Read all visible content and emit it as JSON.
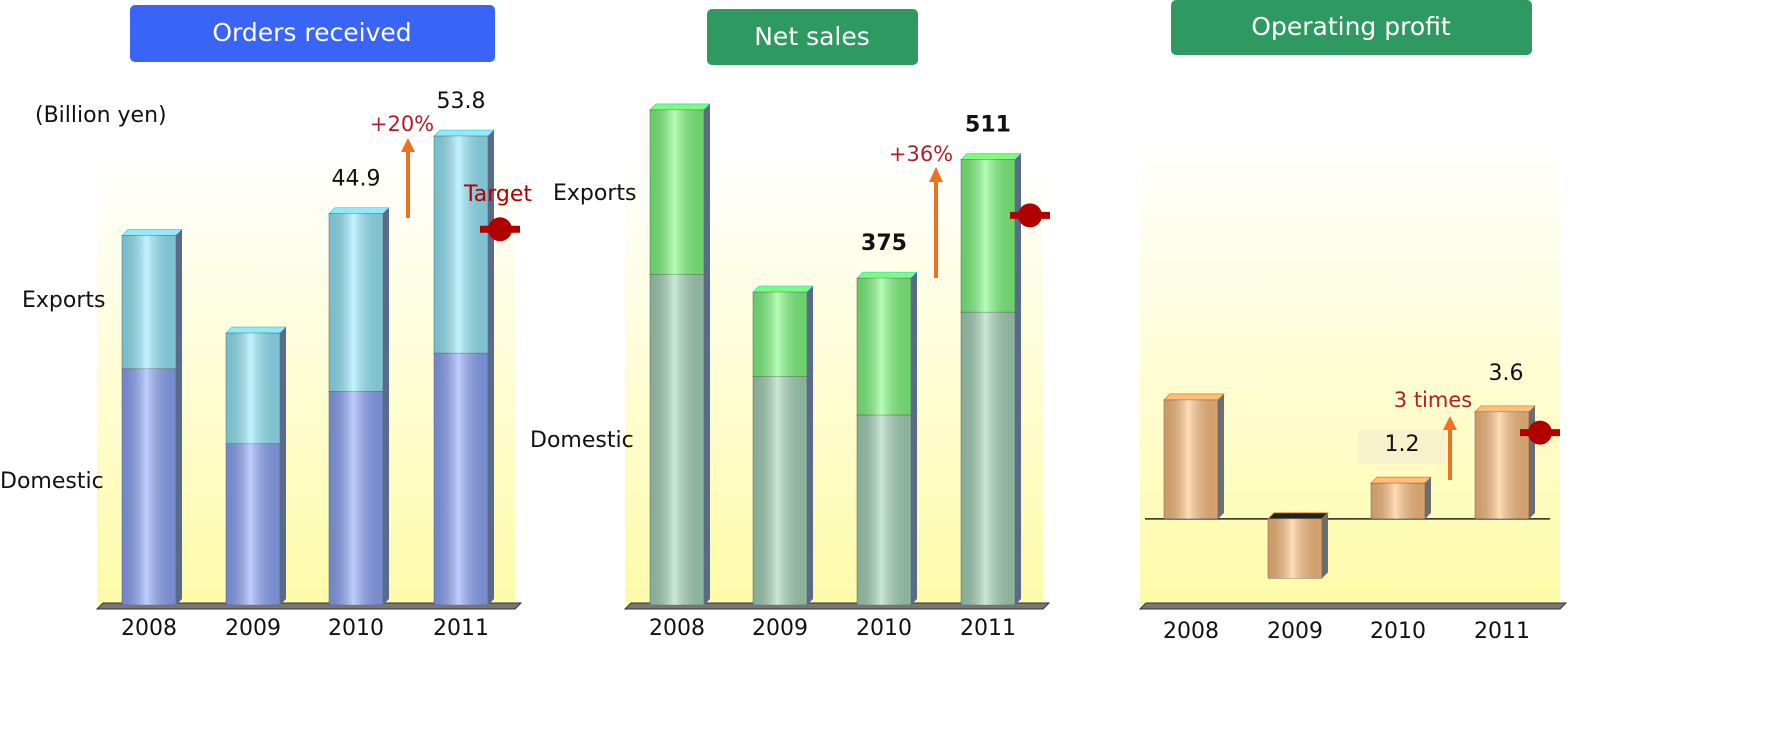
{
  "chart_data": [
    {
      "type": "stacked-bar",
      "title": "Orders received",
      "unit": "(Billion yen)",
      "categories": [
        "2008",
        "2009",
        "2010",
        "2011"
      ],
      "series": [
        {
          "name": "Domestic",
          "color": "#8aa4f8",
          "values": [
            27.1,
            18.5,
            24.5,
            28.9
          ]
        },
        {
          "name": "Exports",
          "color": "#93e8fb",
          "values": [
            15.3,
            12.7,
            20.4,
            24.9
          ]
        }
      ],
      "totals": [
        null,
        null,
        44.9,
        53.8
      ],
      "target": 43.1,
      "target_label": "Target",
      "target_color": "#b00000",
      "annotations": [
        "+20%"
      ],
      "ylim": [
        0,
        60
      ]
    },
    {
      "type": "stacked-bar",
      "title": "Net sales",
      "categories": [
        "2008",
        "2009",
        "2010",
        "2011"
      ],
      "series": [
        {
          "name": "Domestic",
          "color": "#a3d4b8",
          "values": [
            379,
            262,
            218,
            336
          ]
        },
        {
          "name": "Exports",
          "color": "#7dfb7d",
          "values": [
            189,
            97,
            157,
            175
          ]
        }
      ],
      "totals": [
        null,
        null,
        375,
        511
      ],
      "target": 447,
      "target_color": "#b00000",
      "annotations": [
        "+36%"
      ],
      "ylim": [
        0,
        600
      ]
    },
    {
      "type": "bar",
      "title": "Operating profit",
      "categories": [
        "2008",
        "2009",
        "2010",
        "2011"
      ],
      "values": [
        4.0,
        -2.0,
        1.2,
        3.6
      ],
      "color": "#fdbe7e",
      "value_labels": [
        null,
        null,
        "1.2",
        "3.6"
      ],
      "target": 2.9,
      "target_color": "#b00000",
      "annotations": [
        "3 times"
      ],
      "ylim": [
        -2.9,
        14.7
      ]
    }
  ]
}
